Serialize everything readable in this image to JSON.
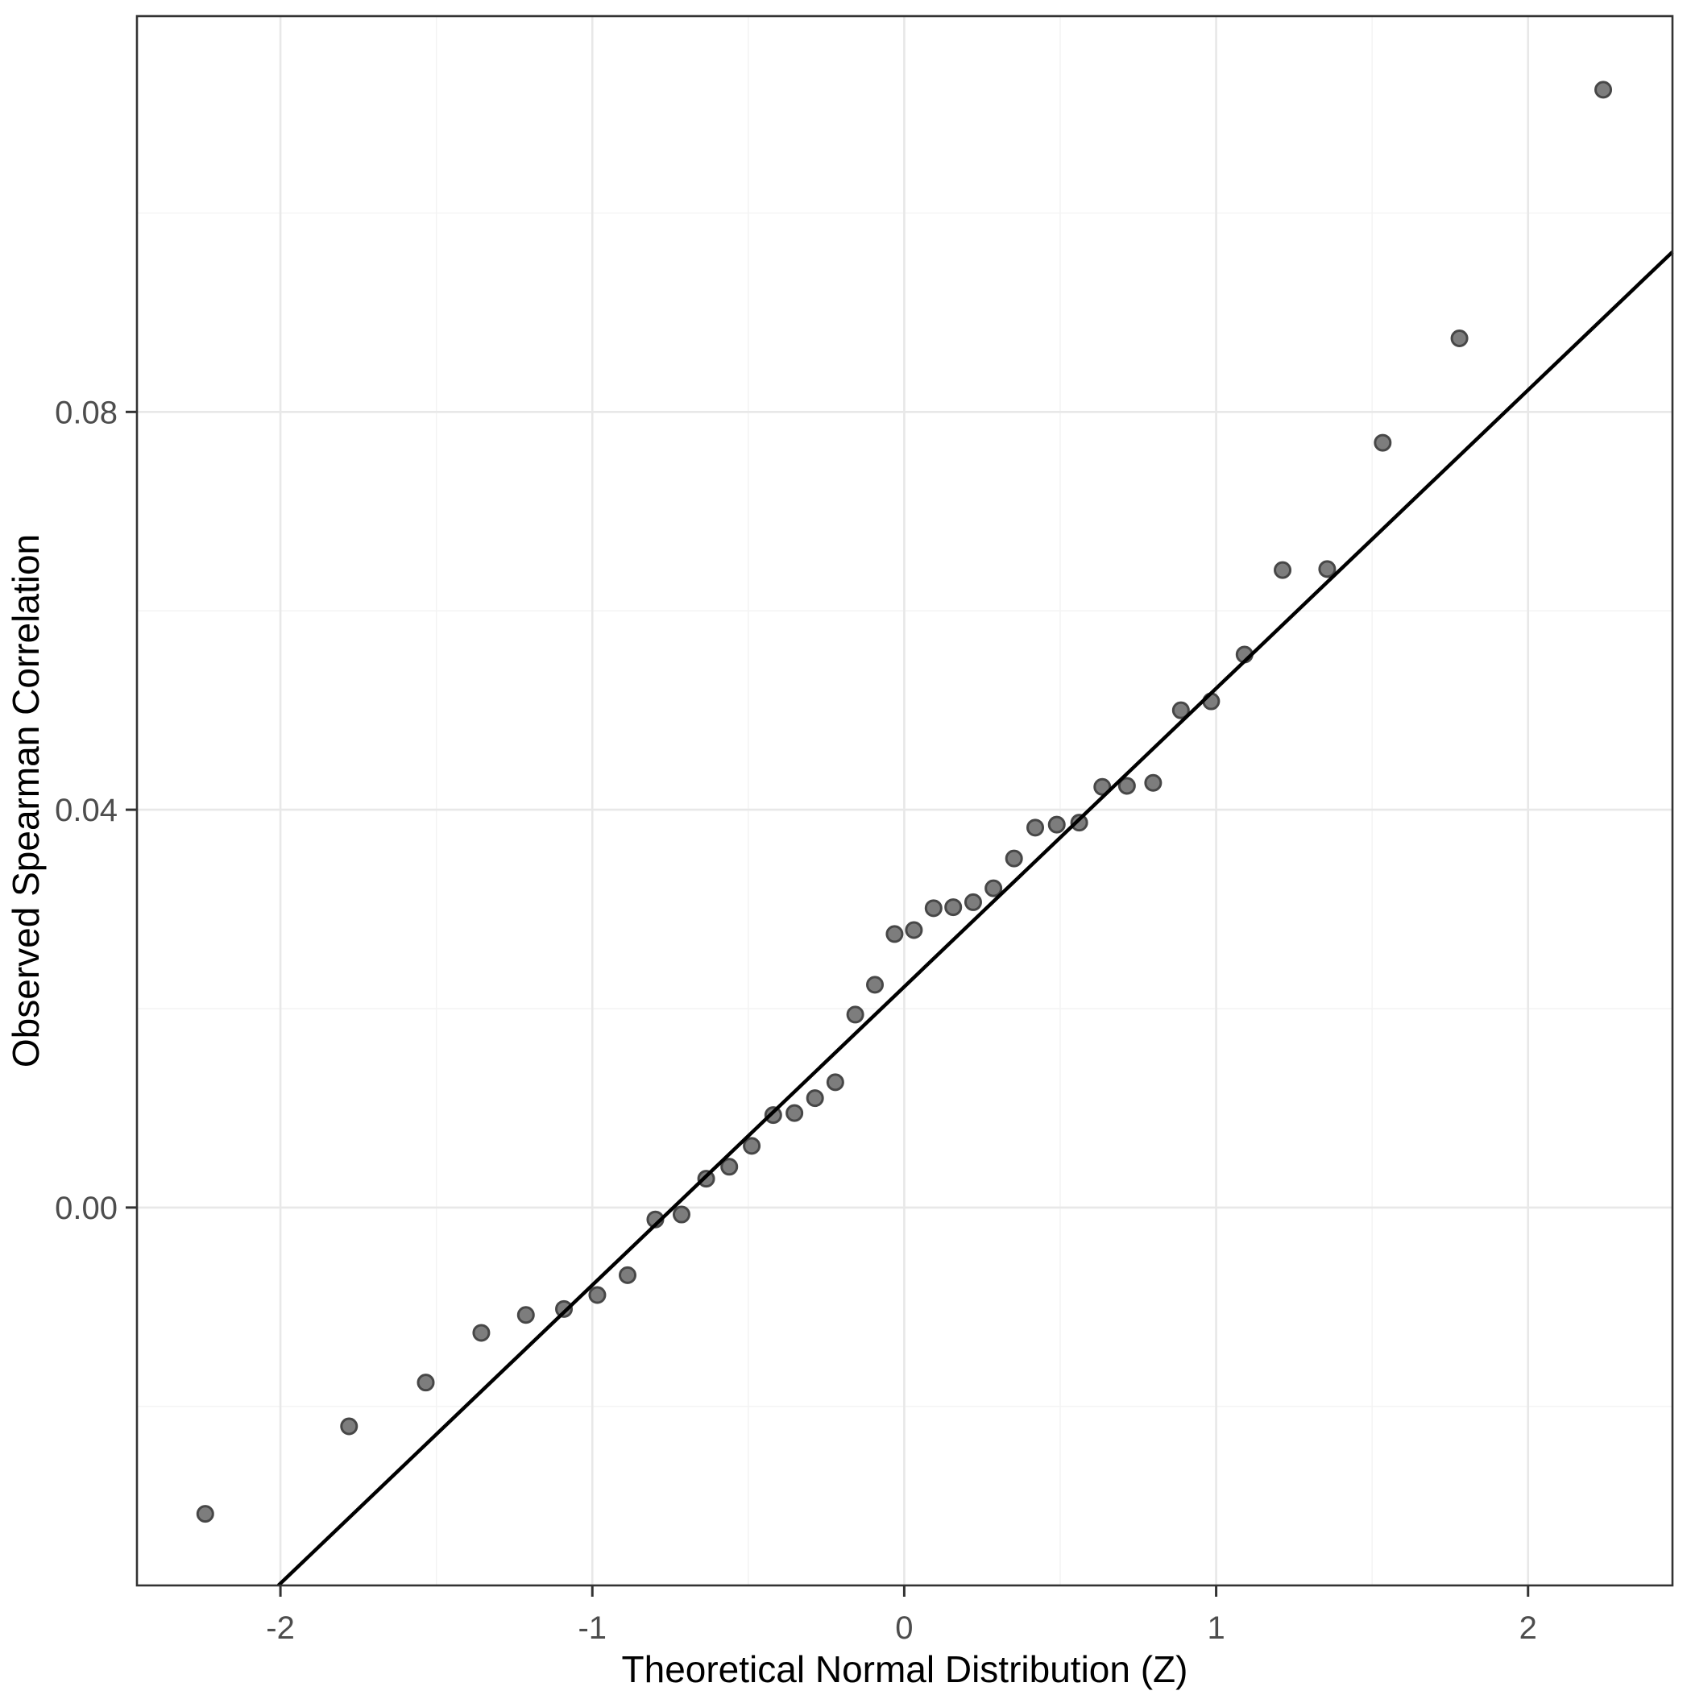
{
  "chart_data": {
    "type": "scatter",
    "title": "",
    "xlabel": "Theoretical Normal Distribution (Z)",
    "ylabel": "Observed Spearman Correlation",
    "xlim": [
      -2.46,
      2.463
    ],
    "ylim": [
      -0.038,
      0.1198
    ],
    "x_major_ticks": [
      -2,
      -1,
      0,
      1,
      2
    ],
    "x_major_tick_labels": [
      "-2",
      "-1",
      "0",
      "1",
      "2"
    ],
    "x_minor_ticks": [
      -1.5,
      -0.5,
      0.5,
      1.5
    ],
    "y_major_ticks": [
      0.0,
      0.04,
      0.08
    ],
    "y_major_tick_labels": [
      "0.00",
      "0.04",
      "0.08"
    ],
    "y_minor_ticks": [
      -0.02,
      0.02,
      0.06,
      0.1
    ],
    "grid": "major-and-minor",
    "legend_position": "none",
    "points": [
      {
        "z": -2.241,
        "rho": -0.0308
      },
      {
        "z": -1.78,
        "rho": -0.022
      },
      {
        "z": -1.534,
        "rho": -0.0176
      },
      {
        "z": -1.356,
        "rho": -0.0126
      },
      {
        "z": -1.213,
        "rho": -0.0108
      },
      {
        "z": -1.091,
        "rho": -0.0102
      },
      {
        "z": -0.984,
        "rho": -0.0088
      },
      {
        "z": -0.887,
        "rho": -0.0068
      },
      {
        "z": -0.798,
        "rho": -0.0012
      },
      {
        "z": -0.714,
        "rho": -0.0007
      },
      {
        "z": -0.635,
        "rho": 0.0029
      },
      {
        "z": -0.561,
        "rho": 0.0041
      },
      {
        "z": -0.489,
        "rho": 0.0062
      },
      {
        "z": -0.42,
        "rho": 0.0093
      },
      {
        "z": -0.352,
        "rho": 0.0095
      },
      {
        "z": -0.286,
        "rho": 0.011
      },
      {
        "z": -0.221,
        "rho": 0.0126
      },
      {
        "z": -0.157,
        "rho": 0.0194
      },
      {
        "z": -0.094,
        "rho": 0.0224
      },
      {
        "z": -0.031,
        "rho": 0.0275
      },
      {
        "z": 0.031,
        "rho": 0.0279
      },
      {
        "z": 0.094,
        "rho": 0.0301
      },
      {
        "z": 0.157,
        "rho": 0.0302
      },
      {
        "z": 0.221,
        "rho": 0.0307
      },
      {
        "z": 0.286,
        "rho": 0.0321
      },
      {
        "z": 0.352,
        "rho": 0.0351
      },
      {
        "z": 0.42,
        "rho": 0.0382
      },
      {
        "z": 0.489,
        "rho": 0.0385
      },
      {
        "z": 0.561,
        "rho": 0.0387
      },
      {
        "z": 0.635,
        "rho": 0.0423
      },
      {
        "z": 0.714,
        "rho": 0.0424
      },
      {
        "z": 0.798,
        "rho": 0.0427
      },
      {
        "z": 0.887,
        "rho": 0.05
      },
      {
        "z": 0.984,
        "rho": 0.0509
      },
      {
        "z": 1.091,
        "rho": 0.0556
      },
      {
        "z": 1.213,
        "rho": 0.0641
      },
      {
        "z": 1.356,
        "rho": 0.0642
      },
      {
        "z": 1.534,
        "rho": 0.0769
      },
      {
        "z": 1.78,
        "rho": 0.0874
      },
      {
        "z": 2.241,
        "rho": 0.1124
      }
    ],
    "reference_line": {
      "slope": 0.03,
      "intercept": 0.0222
    },
    "colors": {
      "background": "#ffffff",
      "panel_background": "#ffffff",
      "panel_border": "#333333",
      "grid_major": "#e8e8e8",
      "grid_minor": "#f3f3f3",
      "point_fill": "#7d7d7d",
      "point_stroke": "#474747",
      "reference_line": "#000000",
      "tick_mark": "#333333",
      "tick_label": "#4d4d4d",
      "axis_title": "#000000"
    }
  }
}
